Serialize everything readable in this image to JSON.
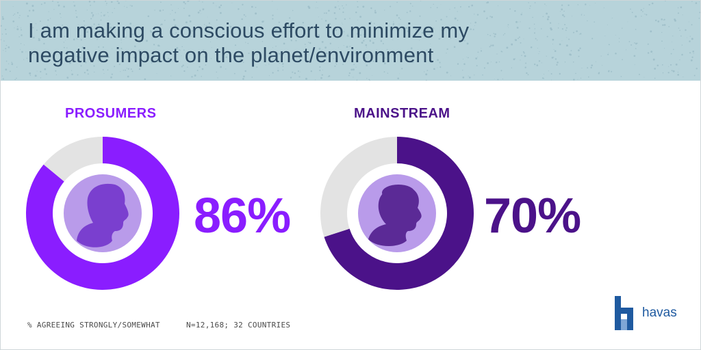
{
  "header": {
    "title": "I am making a conscious effort to minimize my negative impact on the planet/environment"
  },
  "chart_data": [
    {
      "type": "pie",
      "title": "PROSUMERS",
      "value_label": "86%",
      "values": [
        86,
        14
      ],
      "colors": [
        "#8a1dff",
        "#e3e3e3"
      ],
      "center_color": "#b99bea"
    },
    {
      "type": "pie",
      "title": "MAINSTREAM",
      "value_label": "70%",
      "values": [
        70,
        30
      ],
      "colors": [
        "#4b1289",
        "#e3e3e3"
      ],
      "center_color": "#b99bea"
    }
  ],
  "footer": {
    "left_note": "% AGREEING STRONGLY/SOMEWHAT",
    "right_note": "N=12,168; 32 COUNTRIES"
  },
  "logo": {
    "text": "havas",
    "icon": "havas-logo-icon"
  },
  "colors": {
    "header_bg": "#b7d3da",
    "title_text": "#2d4a63",
    "prosumers_accent": "#8a1dff",
    "mainstream_accent": "#4b1289",
    "remainder": "#e3e3e3",
    "logo_blue": "#1f5aa0"
  }
}
